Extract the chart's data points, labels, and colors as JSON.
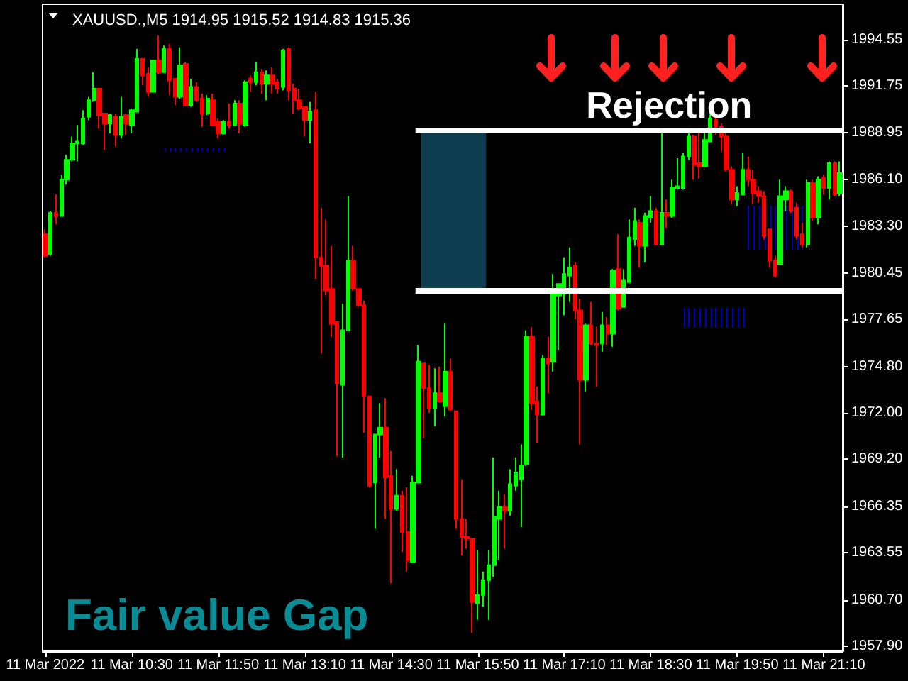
{
  "chart_data": {
    "type": "candlestick",
    "title": "XAUUSD.,M5 1914.95 1915.52 1914.83 1915.36",
    "categories": [
      "11 Mar 2022",
      null,
      null,
      null,
      null,
      null,
      null,
      null,
      null,
      null,
      null,
      null,
      null,
      null,
      null,
      null,
      "11 Mar 10:30",
      null,
      null,
      null,
      null,
      null,
      null,
      null,
      null,
      null,
      null,
      null,
      null,
      null,
      null,
      null,
      "11 Mar 11:50",
      null,
      null,
      null,
      null,
      null,
      null,
      null,
      null,
      null,
      null,
      null,
      null,
      null,
      null,
      null,
      "11 Mar 13:10",
      null,
      null,
      null,
      null,
      null,
      null,
      null,
      null,
      null,
      null,
      null,
      null,
      null,
      null,
      null,
      "11 Mar 14:30",
      null,
      null,
      null,
      null,
      null,
      null,
      null,
      null,
      null,
      null,
      null,
      null,
      null,
      null,
      null,
      "11 Mar 15:50",
      null,
      null,
      null,
      null,
      null,
      null,
      null,
      null,
      null,
      null,
      null,
      null,
      null,
      null,
      null,
      "11 Mar 17:10",
      null,
      null,
      null,
      null,
      null,
      null,
      null,
      null,
      null,
      null,
      null,
      null,
      null,
      null,
      null,
      "11 Mar 18:30",
      null,
      null,
      null,
      null,
      null,
      null,
      null,
      null,
      null,
      null,
      null,
      null,
      null,
      null,
      null,
      "11 Mar 19:50",
      null,
      null,
      null,
      null,
      null,
      null,
      null,
      null,
      null,
      null,
      null,
      null,
      null,
      null,
      null,
      "11 Mar 21:10",
      null,
      null,
      null
    ],
    "ohlc": [
      [
        1982.8,
        1983.1,
        1981.4,
        1981.5
      ],
      [
        1981.6,
        1984.2,
        1981.5,
        1984.1
      ],
      [
        1984.1,
        1985.2,
        1983.4,
        1983.9
      ],
      [
        1983.9,
        1986.4,
        1983.9,
        1986.1
      ],
      [
        1986.1,
        1987.6,
        1985.8,
        1987.3
      ],
      [
        1987.3,
        1988.7,
        1987.2,
        1988.3
      ],
      [
        1988.3,
        1989.4,
        1987.2,
        1988.4
      ],
      [
        1988.3,
        1990.3,
        1988.2,
        1989.8
      ],
      [
        1989.9,
        1991.1,
        1989.7,
        1990.9
      ],
      [
        1990.9,
        1992.6,
        1990.8,
        1991.6
      ],
      [
        1991.6,
        1991.6,
        1989.2,
        1990.0
      ],
      [
        1990.1,
        1990.1,
        1987.9,
        1989.5
      ],
      [
        1989.5,
        1990.1,
        1988.9,
        1990.0
      ],
      [
        1989.9,
        1990.1,
        1988.1,
        1988.8
      ],
      [
        1988.8,
        1991.1,
        1988.6,
        1989.9
      ],
      [
        1990.0,
        1990.1,
        1988.8,
        1989.5
      ],
      [
        1989.4,
        1990.4,
        1988.9,
        1990.3
      ],
      [
        1990.2,
        1994.0,
        1990.2,
        1993.4
      ],
      [
        1993.4,
        1993.4,
        1991.8,
        1992.4
      ],
      [
        1992.5,
        1992.9,
        1991.1,
        1991.4
      ],
      [
        1991.4,
        1993.3,
        1991.4,
        1993.3
      ],
      [
        1993.3,
        1994.8,
        1992.5,
        1992.6
      ],
      [
        1992.6,
        1994.2,
        1992.6,
        1994.0
      ],
      [
        1994.0,
        1994.3,
        1991.2,
        1992.1
      ],
      [
        1992.2,
        1992.2,
        1990.6,
        1991.1
      ],
      [
        1991.1,
        1994.1,
        1991.0,
        1993.0
      ],
      [
        1993.1,
        1993.2,
        1990.6,
        1990.6
      ],
      [
        1990.6,
        1992.2,
        1990.5,
        1991.7
      ],
      [
        1991.7,
        1992.0,
        1990.8,
        1990.9
      ],
      [
        1991.0,
        1991.3,
        1989.3,
        1990.1
      ],
      [
        1990.1,
        1991.2,
        1990.0,
        1991.0
      ],
      [
        1990.9,
        1991.3,
        1989.4,
        1989.4
      ],
      [
        1989.6,
        1989.8,
        1988.6,
        1988.9
      ],
      [
        1988.9,
        1989.7,
        1988.9,
        1989.6
      ],
      [
        1989.6,
        1990.7,
        1989.2,
        1989.4
      ],
      [
        1989.4,
        1990.9,
        1989.4,
        1990.7
      ],
      [
        1990.7,
        1990.9,
        1988.9,
        1989.5
      ],
      [
        1989.4,
        1992.1,
        1989.3,
        1992.0
      ],
      [
        1992.2,
        1992.4,
        1991.4,
        1992.0
      ],
      [
        1992.0,
        1993.2,
        1991.8,
        1992.6
      ],
      [
        1992.6,
        1992.8,
        1991.3,
        1991.9
      ],
      [
        1991.9,
        1992.7,
        1990.9,
        1992.4
      ],
      [
        1992.4,
        1992.9,
        1991.3,
        1991.9
      ],
      [
        1992.0,
        1992.2,
        1991.3,
        1991.6
      ],
      [
        1991.7,
        1994.0,
        1991.5,
        1993.9
      ],
      [
        1994.0,
        1994.1,
        1990.9,
        1991.5
      ],
      [
        1991.6,
        1991.9,
        1990.1,
        1990.9
      ],
      [
        1990.9,
        1991.6,
        1990.3,
        1990.4
      ],
      [
        1990.5,
        1990.5,
        1988.7,
        1989.7
      ],
      [
        1989.7,
        1990.8,
        1988.3,
        1990.2
      ],
      [
        1990.3,
        1991.4,
        1980.1,
        1981.4
      ],
      [
        1981.4,
        1984.4,
        1975.6,
        1980.9
      ],
      [
        1980.9,
        1983.7,
        1979.1,
        1979.4
      ],
      [
        1979.5,
        1982.1,
        1976.6,
        1977.4
      ],
      [
        1977.5,
        1977.5,
        1969.4,
        1973.8
      ],
      [
        1973.7,
        1978.6,
        1969.3,
        1977.0
      ],
      [
        1977.0,
        1985.1,
        1977.0,
        1981.2
      ],
      [
        1981.2,
        1982.1,
        1979.4,
        1979.5
      ],
      [
        1979.5,
        1979.5,
        1978.4,
        1978.5
      ],
      [
        1978.5,
        1978.8,
        1970.8,
        1973.0
      ],
      [
        1973.0,
        1973.0,
        1967.5,
        1967.6
      ],
      [
        1967.8,
        1970.7,
        1965.0,
        1970.7
      ],
      [
        1970.7,
        1972.6,
        1969.3,
        1971.1
      ],
      [
        1971.1,
        1972.9,
        1965.6,
        1968.1
      ],
      [
        1968.2,
        1969.7,
        1961.7,
        1966.2
      ],
      [
        1966.2,
        1968.6,
        1966.1,
        1967.0
      ],
      [
        1967.0,
        1967.3,
        1963.6,
        1964.8
      ],
      [
        1964.8,
        1967.5,
        1962.4,
        1963.1
      ],
      [
        1963.0,
        1968.2,
        1963.0,
        1967.8
      ],
      [
        1967.8,
        1976.1,
        1967.8,
        1975.1
      ],
      [
        1975.0,
        1975.0,
        1970.5,
        1973.5
      ],
      [
        1973.5,
        1974.9,
        1972.0,
        1972.3
      ],
      [
        1972.3,
        1974.7,
        1971.2,
        1973.2
      ],
      [
        1973.2,
        1974.8,
        1972.7,
        1972.7
      ],
      [
        1972.4,
        1977.4,
        1971.8,
        1974.5
      ],
      [
        1974.5,
        1975.3,
        1972.2,
        1972.2
      ],
      [
        1972.1,
        1972.1,
        1965.0,
        1965.6
      ],
      [
        1965.6,
        1968.0,
        1963.4,
        1964.5
      ],
      [
        1964.5,
        1965.6,
        1963.8,
        1964.4
      ],
      [
        1964.4,
        1964.4,
        1958.7,
        1960.6
      ],
      [
        1960.5,
        1963.7,
        1959.5,
        1961.0
      ],
      [
        1961.0,
        1962.4,
        1960.3,
        1961.9
      ],
      [
        1961.9,
        1963.7,
        1959.5,
        1962.8
      ],
      [
        1962.8,
        1969.3,
        1962.1,
        1965.7
      ],
      [
        1965.6,
        1967.3,
        1963.1,
        1966.3
      ],
      [
        1966.3,
        1967.1,
        1963.8,
        1966.1
      ],
      [
        1966.1,
        1968.6,
        1965.8,
        1967.7
      ],
      [
        1967.6,
        1969.3,
        1967.3,
        1968.4
      ],
      [
        1968.0,
        1970.1,
        1965.1,
        1968.8
      ],
      [
        1968.9,
        1977.0,
        1968.8,
        1976.6
      ],
      [
        1976.6,
        1977.2,
        1972.2,
        1972.6
      ],
      [
        1972.7,
        1973.6,
        1970.2,
        1971.9
      ],
      [
        1971.9,
        1975.5,
        1971.9,
        1975.3
      ],
      [
        1975.3,
        1976.6,
        1973.2,
        1975.0
      ],
      [
        1975.1,
        1980.4,
        1974.5,
        1979.2
      ],
      [
        1979.1,
        1979.8,
        1975.8,
        1979.8
      ],
      [
        1979.2,
        1981.4,
        1977.9,
        1980.4
      ],
      [
        1980.3,
        1982.0,
        1978.7,
        1980.8
      ],
      [
        1980.9,
        1981.1,
        1977.7,
        1978.2
      ],
      [
        1978.2,
        1978.9,
        1970.1,
        1974.0
      ],
      [
        1974.0,
        1977.4,
        1973.3,
        1977.3
      ],
      [
        1977.3,
        1978.7,
        1976.1,
        1976.2
      ],
      [
        1976.2,
        1977.2,
        1973.6,
        1976.1
      ],
      [
        1976.2,
        1978.1,
        1975.7,
        1977.3
      ],
      [
        1977.3,
        1977.8,
        1976.1,
        1976.8
      ],
      [
        1976.8,
        1980.7,
        1976.0,
        1980.6
      ],
      [
        1980.7,
        1982.8,
        1978.2,
        1978.3
      ],
      [
        1978.4,
        1980.7,
        1978.4,
        1980.0
      ],
      [
        1979.9,
        1983.7,
        1979.9,
        1982.6
      ],
      [
        1982.5,
        1984.4,
        1982.1,
        1983.6
      ],
      [
        1983.5,
        1983.7,
        1980.8,
        1982.1
      ],
      [
        1982.1,
        1984.1,
        1981.1,
        1983.9
      ],
      [
        1983.8,
        1985.1,
        1983.5,
        1984.2
      ],
      [
        1984.2,
        1984.4,
        1982.2,
        1982.2
      ],
      [
        1982.2,
        1988.9,
        1982.2,
        1984.1
      ],
      [
        1984.1,
        1984.9,
        1983.2,
        1983.9
      ],
      [
        1983.9,
        1986.1,
        1983.8,
        1985.6
      ],
      [
        1985.6,
        1987.4,
        1985.5,
        1985.7
      ],
      [
        1985.6,
        1987.7,
        1985.5,
        1987.5
      ],
      [
        1987.5,
        1988.9,
        1987.3,
        1988.7
      ],
      [
        1988.7,
        1988.8,
        1986.1,
        1987.0
      ],
      [
        1987.1,
        1988.9,
        1986.2,
        1986.9
      ],
      [
        1986.9,
        1988.9,
        1986.9,
        1988.5
      ],
      [
        1988.4,
        1990.1,
        1988.4,
        1989.8
      ],
      [
        1989.7,
        1989.9,
        1988.8,
        1989.3
      ],
      [
        1989.3,
        1989.5,
        1987.8,
        1988.7
      ],
      [
        1988.7,
        1988.9,
        1986.6,
        1986.7
      ],
      [
        1986.7,
        1986.9,
        1984.6,
        1984.9
      ],
      [
        1984.9,
        1985.7,
        1984.5,
        1985.3
      ],
      [
        1985.2,
        1987.7,
        1985.2,
        1986.7
      ],
      [
        1986.7,
        1987.5,
        1985.7,
        1986.1
      ],
      [
        1986.1,
        1986.7,
        1984.6,
        1985.3
      ],
      [
        1985.4,
        1985.7,
        1984.7,
        1985.1
      ],
      [
        1985.1,
        1985.4,
        1982.5,
        1982.7
      ],
      [
        1983.1,
        1983.1,
        1980.8,
        1981.2
      ],
      [
        1981.2,
        1981.5,
        1980.2,
        1980.3
      ],
      [
        1981.0,
        1986.1,
        1981.0,
        1985.1
      ],
      [
        1984.9,
        1985.7,
        1984.2,
        1985.4
      ],
      [
        1985.4,
        1985.5,
        1984.1,
        1984.2
      ],
      [
        1984.4,
        1984.7,
        1982.5,
        1982.7
      ],
      [
        1982.8,
        1983.5,
        1982.0,
        1982.2
      ],
      [
        1982.2,
        1986.1,
        1982.0,
        1985.9
      ],
      [
        1985.9,
        1986.1,
        1983.6,
        1983.8
      ],
      [
        1983.8,
        1986.3,
        1983.4,
        1986.1
      ],
      [
        1986.2,
        1986.4,
        1985.2,
        1985.6
      ],
      [
        1985.6,
        1987.2,
        1984.9,
        1987.1
      ],
      [
        1987.1,
        1987.2,
        1985.1,
        1985.2
      ],
      [
        1985.3,
        1987.2,
        1985.1,
        1986.5
      ]
    ],
    "colors": [
      "#ff0000",
      "#00ff00",
      "#ff0000",
      "#00ff00",
      "#00ff00",
      "#00ff00",
      "#00ff00",
      "#00ff00",
      "#00ff00",
      "#00ff00",
      "#ff0000",
      "#ff0000",
      "#00ff00",
      "#ff0000",
      "#00ff00",
      "#ff0000",
      "#00ff00",
      "#00ff00",
      "#ff0000",
      "#ff0000",
      "#00ff00",
      "#ff0000",
      "#00ff00",
      "#ff0000",
      "#ff0000",
      "#00ff00",
      "#ff0000",
      "#00ff00",
      "#ff0000",
      "#ff0000",
      "#00ff00",
      "#ff0000",
      "#ff0000",
      "#00ff00",
      "#ff0000",
      "#00ff00",
      "#ff0000",
      "#00ff00",
      "#ff0000",
      "#00ff00",
      "#ff0000",
      "#00ff00",
      "#ff0000",
      "#ff0000",
      "#00ff00",
      "#ff0000",
      "#ff0000",
      "#ff0000",
      "#ff0000",
      "#00ff00",
      "#ff0000",
      "#ff0000",
      "#ff0000",
      "#ff0000",
      "#ff0000",
      "#00ff00",
      "#00ff00",
      "#ff0000",
      "#ff0000",
      "#ff0000",
      "#ff0000",
      "#00ff00",
      "#00ff00",
      "#ff0000",
      "#ff0000",
      "#00ff00",
      "#ff0000",
      "#ff0000",
      "#00ff00",
      "#00ff00",
      "#ff0000",
      "#ff0000",
      "#00ff00",
      "#ff0000",
      "#00ff00",
      "#ff0000",
      "#ff0000",
      "#ff0000",
      "#ff0000",
      "#ff0000",
      "#00ff00",
      "#00ff00",
      "#00ff00",
      "#00ff00",
      "#00ff00",
      "#ff0000",
      "#00ff00",
      "#00ff00",
      "#00ff00",
      "#00ff00",
      "#ff0000",
      "#ff0000",
      "#00ff00",
      "#ff0000",
      "#00ff00",
      "#00ff00",
      "#00ff00",
      "#00ff00",
      "#ff0000",
      "#ff0000",
      "#00ff00",
      "#ff0000",
      "#ff0000",
      "#00ff00",
      "#ff0000",
      "#00ff00",
      "#ff0000",
      "#00ff00",
      "#00ff00",
      "#00ff00",
      "#ff0000",
      "#00ff00",
      "#00ff00",
      "#ff0000",
      "#00ff00",
      "#ff0000",
      "#00ff00",
      "#00ff00",
      "#00ff00",
      "#00ff00",
      "#ff0000",
      "#ff0000",
      "#00ff00",
      "#00ff00",
      "#ff0000",
      "#ff0000",
      "#ff0000",
      "#ff0000",
      "#00ff00",
      "#00ff00",
      "#ff0000",
      "#ff0000",
      "#ff0000",
      "#ff0000",
      "#ff0000",
      "#ff0000",
      "#00ff00",
      "#00ff00",
      "#ff0000",
      "#ff0000",
      "#ff0000",
      "#00ff00",
      "#ff0000",
      "#00ff00",
      "#ff0000",
      "#00ff00",
      "#ff0000",
      "#00ff00"
    ],
    "ylim": [
      1957.6,
      1996.7
    ],
    "yticks": [
      1994.55,
      1991.75,
      1988.95,
      {
        "value": 1986.1,
        "label": "1986.10"
      },
      {
        "value": 1983.3,
        "label": "1983.30"
      },
      1980.45,
      1977.65,
      {
        "value": 1974.8,
        "label": "1974.80"
      },
      {
        "value": 1972,
        "label": "1972.00"
      },
      {
        "value": 1969.2,
        "label": "1969.20"
      },
      1966.35,
      1963.55,
      {
        "value": 1960.7,
        "label": "1960.70"
      },
      {
        "value": 1957.9,
        "label": "1957.90"
      }
    ],
    "ref_lines": [
      {
        "axis": "y",
        "value": 1989.1,
        "color": "#ffffff"
      },
      {
        "axis": "y",
        "value": 1979.4,
        "color": "#ffffff"
      }
    ],
    "bands": [
      {
        "axis": "y",
        "from": 1979.4,
        "to": 1989.1,
        "color": "#2aaee6"
      }
    ],
    "annotations": [
      "Rejection",
      "Fair value Gap"
    ]
  }
}
